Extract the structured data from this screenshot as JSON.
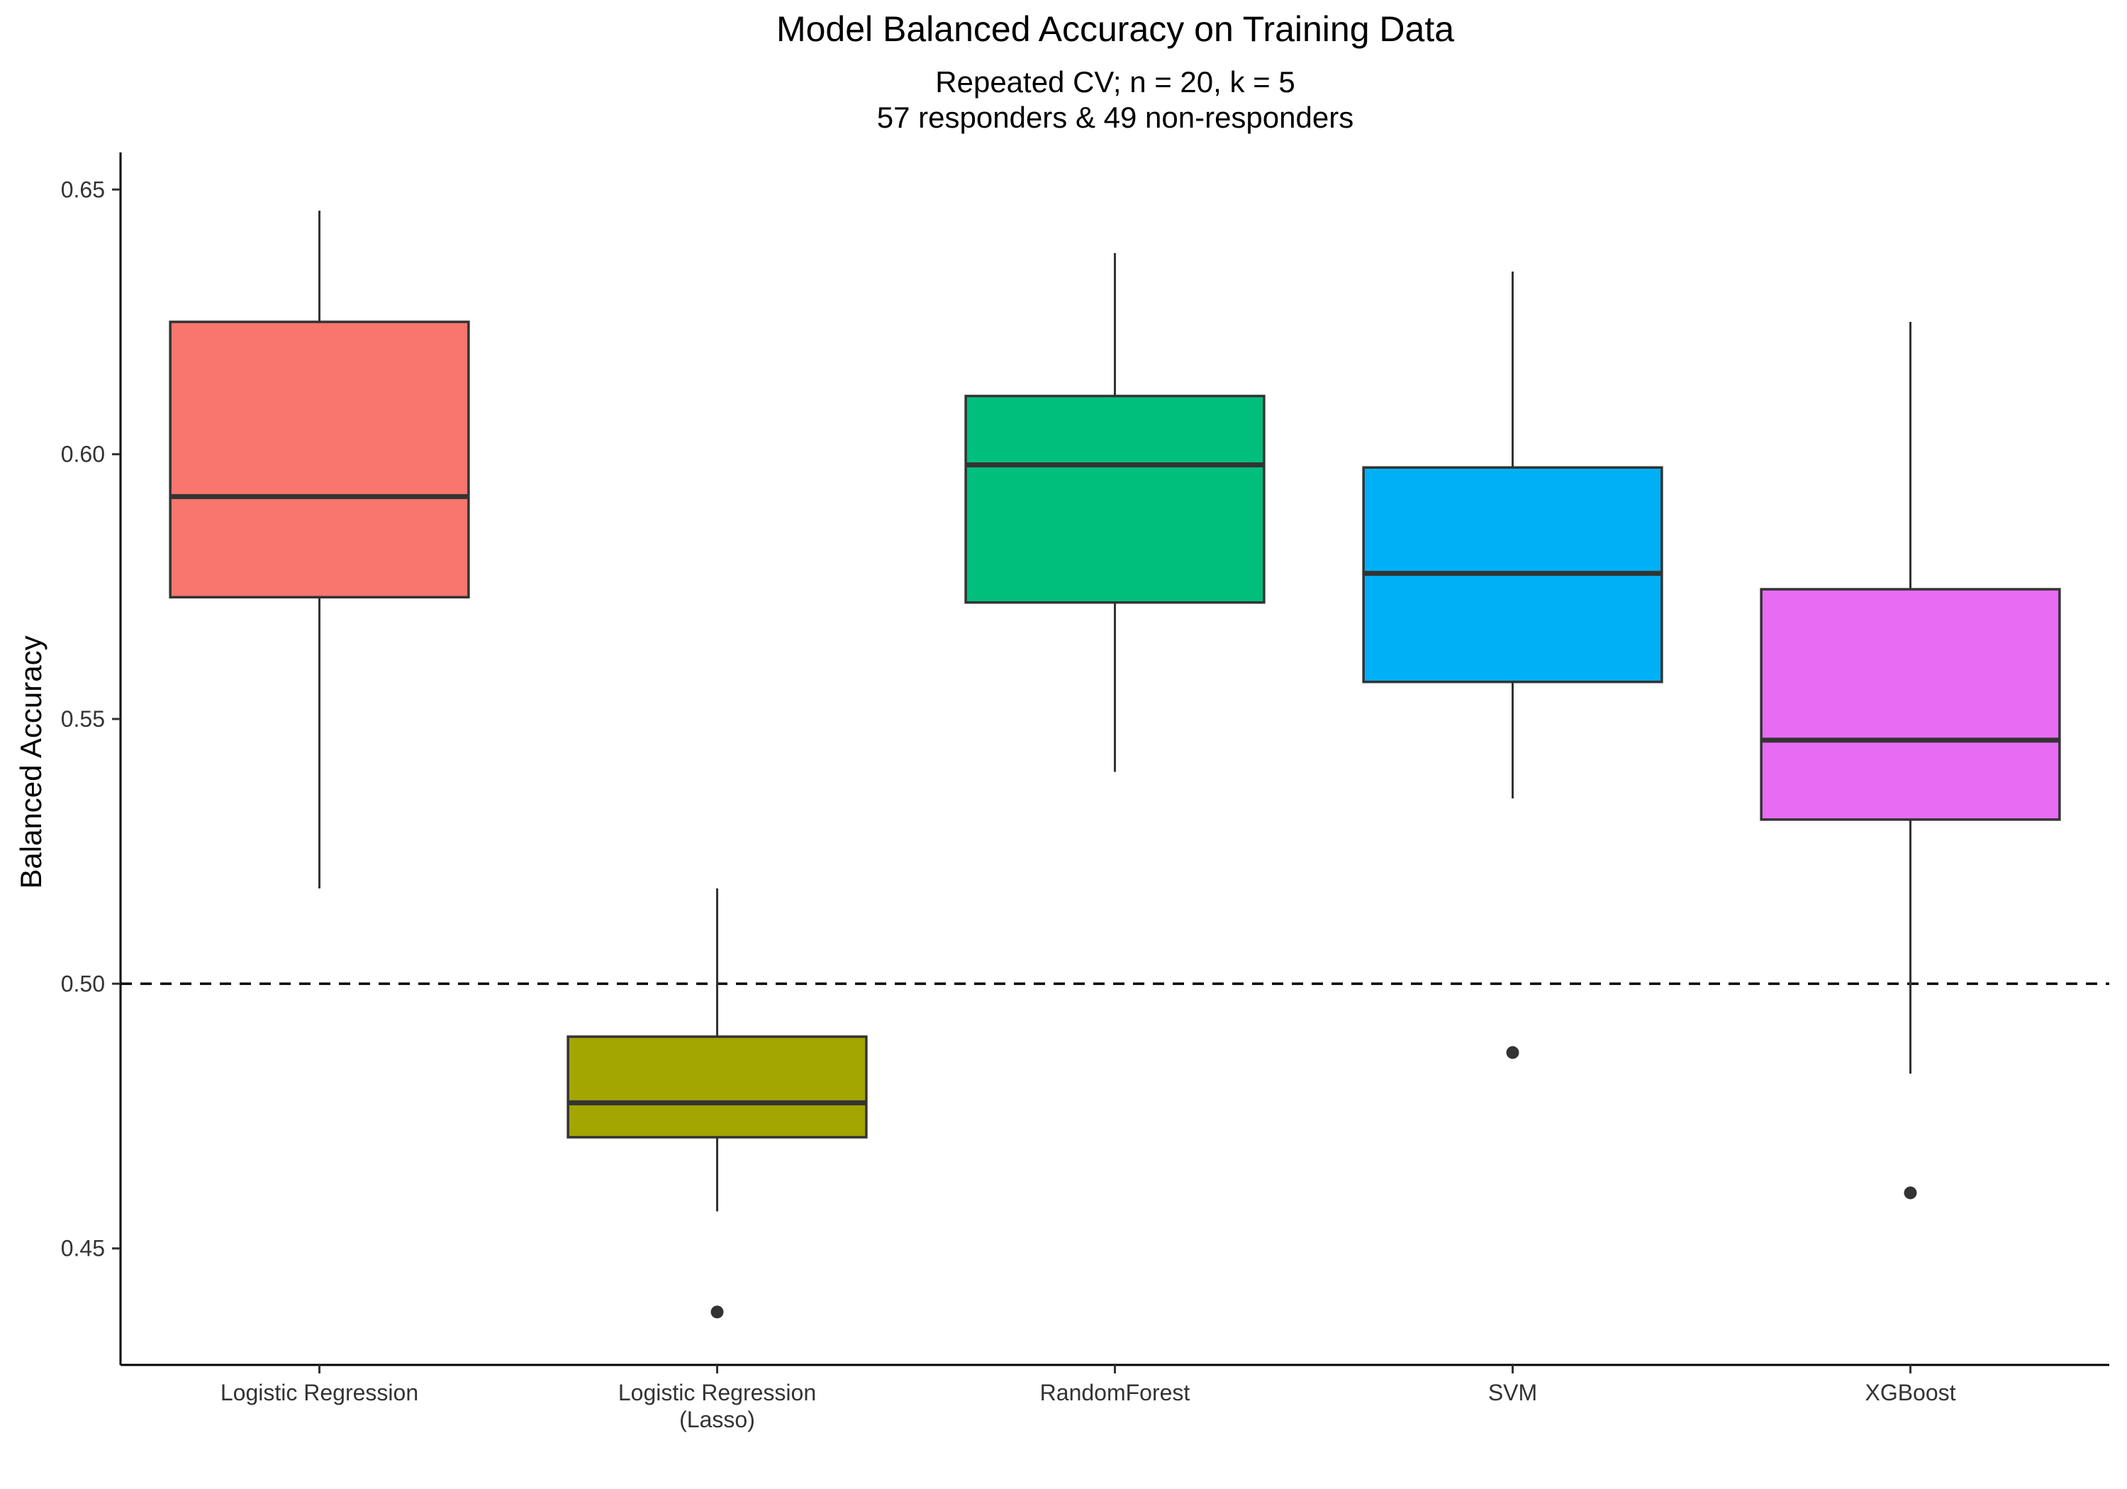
{
  "chart_data": {
    "type": "box",
    "title": "Model Balanced Accuracy on Training Data",
    "subtitle_lines": [
      "Repeated CV; n = 20, k = 5",
      "57 responders & 49 non-responders"
    ],
    "xlabel": "",
    "ylabel": "Balanced Accuracy",
    "ylim": [
      0.428,
      0.657
    ],
    "yticks": [
      0.45,
      0.5,
      0.55,
      0.6,
      0.65
    ],
    "ytick_labels": [
      "0.45",
      "0.50",
      "0.55",
      "0.60",
      "0.65"
    ],
    "reference_line": {
      "y": 0.5,
      "style": "dashed"
    },
    "grid": false,
    "legend": "none",
    "categories": [
      {
        "label_lines": [
          "Logistic Regression"
        ],
        "color": "#F8766D",
        "whisker_low": 0.518,
        "q1": 0.573,
        "median": 0.592,
        "q3": 0.625,
        "whisker_high": 0.646,
        "outliers": []
      },
      {
        "label_lines": [
          "Logistic Regression",
          "(Lasso)"
        ],
        "color": "#A3A500",
        "whisker_low": 0.457,
        "q1": 0.471,
        "median": 0.4775,
        "q3": 0.49,
        "whisker_high": 0.518,
        "outliers": [
          0.438
        ]
      },
      {
        "label_lines": [
          "RandomForest"
        ],
        "color": "#00BF7D",
        "whisker_low": 0.54,
        "q1": 0.572,
        "median": 0.598,
        "q3": 0.611,
        "whisker_high": 0.638,
        "outliers": []
      },
      {
        "label_lines": [
          "SVM"
        ],
        "color": "#00B0F6",
        "whisker_low": 0.535,
        "q1": 0.557,
        "median": 0.5775,
        "q3": 0.5975,
        "whisker_high": 0.6345,
        "outliers": [
          0.487
        ]
      },
      {
        "label_lines": [
          "XGBoost"
        ],
        "color": "#E76BF3",
        "whisker_low": 0.483,
        "q1": 0.531,
        "median": 0.546,
        "q3": 0.5745,
        "whisker_high": 0.625,
        "outliers": [
          0.4605
        ]
      }
    ]
  }
}
